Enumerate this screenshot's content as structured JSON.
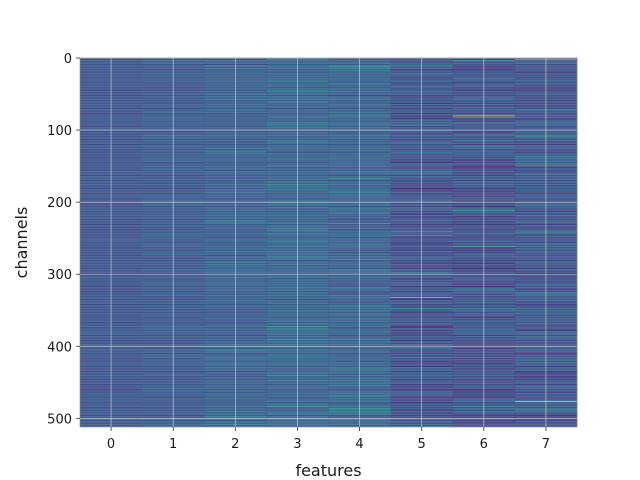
{
  "chart_data": {
    "type": "heatmap",
    "xlabel": "features",
    "ylabel": "channels",
    "x_categories": [
      "0",
      "1",
      "2",
      "3",
      "4",
      "5",
      "6",
      "7"
    ],
    "y_ticks": [
      0,
      100,
      200,
      300,
      400,
      500
    ],
    "y_range": [
      0,
      512
    ],
    "rows": 512,
    "columns": 8,
    "colormap": "viridis",
    "grid": true,
    "grid_color": "#e8e8e8",
    "column_base_values": [
      0.25,
      0.27,
      0.29,
      0.31,
      0.3,
      0.24,
      0.24,
      0.25
    ],
    "column_variation": [
      0.06,
      0.08,
      0.11,
      0.13,
      0.15,
      0.18,
      0.2,
      0.2
    ],
    "highlights": [
      {
        "feature": 3,
        "channel": 45,
        "value": 0.55
      },
      {
        "feature": 4,
        "channel": 12,
        "value": 0.62
      },
      {
        "feature": 4,
        "channel": 80,
        "value": 0.58
      },
      {
        "feature": 5,
        "channel": 240,
        "value": 0.55
      },
      {
        "feature": 5,
        "channel": 332,
        "value": 0.75
      },
      {
        "feature": 5,
        "channel": 372,
        "value": 0.02
      },
      {
        "feature": 6,
        "channel": 80,
        "value": 0.95
      },
      {
        "feature": 6,
        "channel": 150,
        "value": 0.06
      },
      {
        "feature": 7,
        "channel": 2,
        "value": 0.85
      },
      {
        "feature": 7,
        "channel": 108,
        "value": 0.6
      },
      {
        "feature": 7,
        "channel": 148,
        "value": 0.62
      },
      {
        "feature": 7,
        "channel": 298,
        "value": 0.05
      },
      {
        "feature": 7,
        "channel": 476,
        "value": 0.92
      }
    ]
  }
}
